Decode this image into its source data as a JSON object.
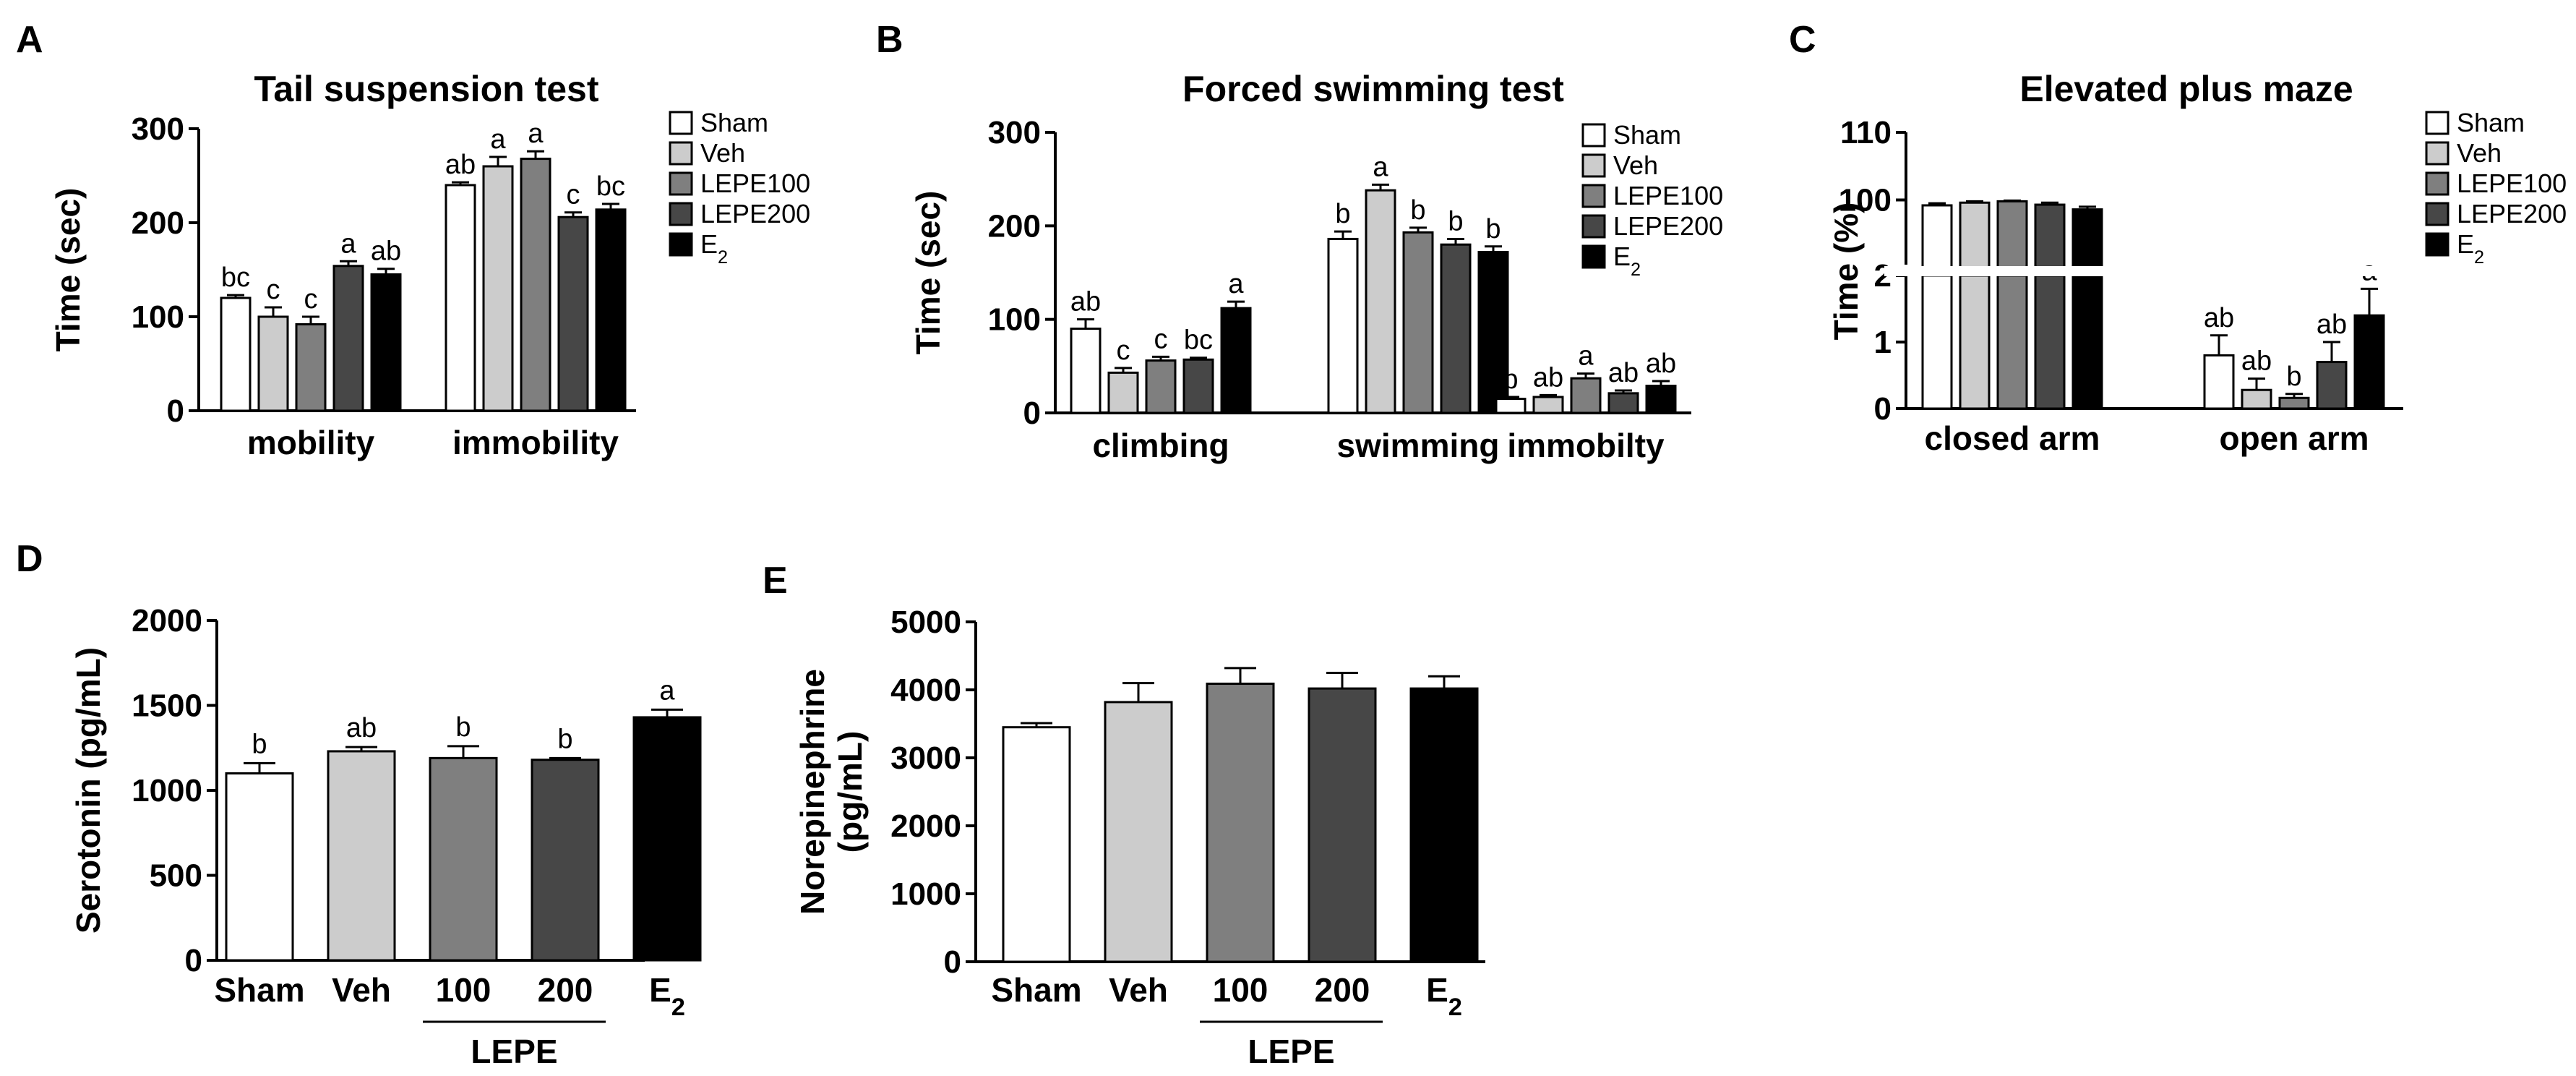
{
  "colors": {
    "Sham": "#ffffff",
    "Veh": "#cccccc",
    "LEPE100": "#7f7f7f",
    "LEPE200": "#474747",
    "E2": "#000000"
  },
  "legend_labels": [
    "Sham",
    "Veh",
    "LEPE100",
    "LEPE200",
    "E2"
  ],
  "chart_data": [
    {
      "panel": "A",
      "type": "bar",
      "title": "Tail suspension test",
      "ylabel": "Time (sec)",
      "ylim": [
        0,
        300
      ],
      "yticks": [
        "0",
        "100",
        "200",
        "300"
      ],
      "categories": [
        "mobility",
        "immobility"
      ],
      "series": [
        {
          "name": "Sham",
          "values": [
            120,
            240
          ],
          "errors": [
            3,
            3
          ],
          "letters": [
            "bc",
            "ab"
          ]
        },
        {
          "name": "Veh",
          "values": [
            100,
            260
          ],
          "errors": [
            10,
            10
          ],
          "letters": [
            "c",
            "a"
          ]
        },
        {
          "name": "LEPE100",
          "values": [
            92,
            268
          ],
          "errors": [
            8,
            8
          ],
          "letters": [
            "c",
            "a"
          ]
        },
        {
          "name": "LEPE200",
          "values": [
            154,
            206
          ],
          "errors": [
            5,
            5
          ],
          "letters": [
            "a",
            "c"
          ]
        },
        {
          "name": "E2",
          "values": [
            145,
            214
          ],
          "errors": [
            6,
            6
          ],
          "letters": [
            "ab",
            "bc"
          ]
        }
      ]
    },
    {
      "panel": "B",
      "type": "bar",
      "title": "Forced swimming test",
      "ylabel": "Time (sec)",
      "ylim": [
        0,
        300
      ],
      "yticks": [
        "0",
        "100",
        "200",
        "300"
      ],
      "categories": [
        "climbing",
        "swimming",
        "immobilty"
      ],
      "series": [
        {
          "name": "Sham",
          "values": [
            90,
            186,
            15
          ],
          "errors": [
            10,
            8,
            2
          ],
          "letters": [
            "ab",
            "b",
            "b"
          ]
        },
        {
          "name": "Veh",
          "values": [
            43,
            238,
            17
          ],
          "errors": [
            5,
            6,
            2
          ],
          "letters": [
            "c",
            "a",
            "ab"
          ]
        },
        {
          "name": "LEPE100",
          "values": [
            56,
            193,
            37
          ],
          "errors": [
            4,
            5,
            5
          ],
          "letters": [
            "c",
            "b",
            "a"
          ]
        },
        {
          "name": "LEPE200",
          "values": [
            57,
            180,
            21
          ],
          "errors": [
            2,
            6,
            3
          ],
          "letters": [
            "bc",
            "b",
            "ab"
          ]
        },
        {
          "name": "E2",
          "values": [
            112,
            172,
            29
          ],
          "errors": [
            7,
            6,
            5
          ],
          "letters": [
            "a",
            "b",
            "ab"
          ]
        }
      ]
    },
    {
      "panel": "C",
      "type": "bar",
      "title": "Elevated plus maze",
      "ylabel": "Time (%)",
      "broken_axis": {
        "lower": [
          0,
          2
        ],
        "upper": [
          90,
          110
        ]
      },
      "yticks": [
        "0",
        "1",
        "2",
        "100",
        "110"
      ],
      "categories": [
        "closed arm",
        "open arm"
      ],
      "series": [
        {
          "name": "Sham",
          "values": [
            99.2,
            0.8
          ],
          "errors": [
            0.3,
            0.3
          ],
          "letters": [
            "",
            "ab"
          ]
        },
        {
          "name": "Veh",
          "values": [
            99.6,
            0.28
          ],
          "errors": [
            0.2,
            0.17
          ],
          "letters": [
            "",
            "ab"
          ]
        },
        {
          "name": "LEPE100",
          "values": [
            99.8,
            0.16
          ],
          "errors": [
            0.1,
            0.06
          ],
          "letters": [
            "",
            "b"
          ]
        },
        {
          "name": "LEPE200",
          "values": [
            99.3,
            0.7
          ],
          "errors": [
            0.3,
            0.3
          ],
          "letters": [
            "",
            "ab"
          ]
        },
        {
          "name": "E2",
          "values": [
            98.6,
            1.4
          ],
          "errors": [
            0.4,
            0.4
          ],
          "letters": [
            "",
            "a"
          ]
        }
      ]
    },
    {
      "panel": "D",
      "type": "bar",
      "ylabel": "Serotonin (pg/mL)",
      "ylim": [
        0,
        2000
      ],
      "yticks": [
        "0",
        "500",
        "1000",
        "1500",
        "2000"
      ],
      "categories": [
        "Sham",
        "Veh",
        "100",
        "200",
        "E2"
      ],
      "group_label": "LEPE",
      "values": [
        1100,
        1230,
        1190,
        1180,
        1430
      ],
      "errors": [
        60,
        25,
        70,
        10,
        45
      ],
      "letters": [
        "b",
        "ab",
        "b",
        "b",
        "a"
      ]
    },
    {
      "panel": "E",
      "type": "bar",
      "ylabel": "Norepinephrine (pg/mL)",
      "ylim": [
        0,
        5000
      ],
      "yticks": [
        "0",
        "1000",
        "2000",
        "3000",
        "4000",
        "5000"
      ],
      "categories": [
        "Sham",
        "Veh",
        "100",
        "200",
        "E2"
      ],
      "group_label": "LEPE",
      "values": [
        3450,
        3820,
        4090,
        4020,
        4020
      ],
      "errors": [
        60,
        280,
        230,
        230,
        180
      ],
      "letters": [
        "",
        "",
        "",
        "",
        ""
      ]
    }
  ]
}
